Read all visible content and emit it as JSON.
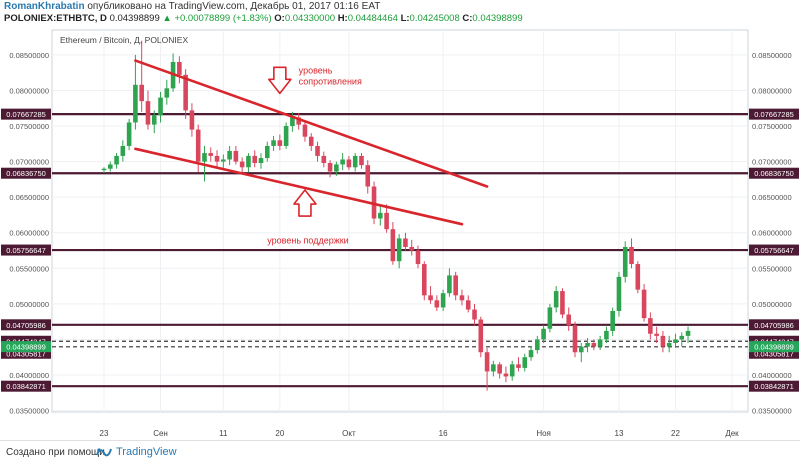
{
  "header": {
    "author": "RomanKhrabatin",
    "published": "опубликовано на TradingView.com, Декабрь 01, 2017 01:16 EAT",
    "quote": {
      "pair": "POLONIEX:ETHBTC, D",
      "last": "0.04398899",
      "change": "▲ +0.00078899 (+1.83%)",
      "open_label": "O:",
      "open": "0.04330000",
      "high_label": "H:",
      "high": "0.04484464",
      "low_label": "L:",
      "low": "0.04245008",
      "close_label": "C:",
      "close": "0.04398899"
    }
  },
  "footer": {
    "created_with": "Создано при помощи",
    "brand": "TradingView"
  },
  "colors": {
    "up": "#2ea44f",
    "down": "#d9475f",
    "level_line": "#4d1a33",
    "trend": "#d8262c",
    "annotation": "#d8262c",
    "last_price": "#26a65b"
  },
  "chart_data": {
    "type": "candlestick",
    "title": "Ethereum / Bitcoin, Д, POLONIEX",
    "ylim": [
      0.0348,
      0.0885
    ],
    "yticks": [
      "0.03500000",
      "0.04000000",
      "0.04500000",
      "0.05000000",
      "0.05500000",
      "0.06000000",
      "0.06500000",
      "0.07000000",
      "0.07500000",
      "0.08000000",
      "0.08500000"
    ],
    "xticks": [
      {
        "label": "23",
        "day": 0
      },
      {
        "label": "Сен",
        "day": 9
      },
      {
        "label": "11",
        "day": 19
      },
      {
        "label": "20",
        "day": 28
      },
      {
        "label": "Окт",
        "day": 39
      },
      {
        "label": "16",
        "day": 54
      },
      {
        "label": "Ноя",
        "day": 70
      },
      {
        "label": "13",
        "day": 82
      },
      {
        "label": "22",
        "day": 91
      },
      {
        "label": "Дек",
        "day": 100
      }
    ],
    "levels": [
      {
        "value": 0.07667285,
        "label": "0.07667285",
        "style": "solid"
      },
      {
        "value": 0.0683675,
        "label": "0.06836750",
        "style": "solid"
      },
      {
        "value": 0.05756647,
        "label": "0.05756647",
        "style": "solid"
      },
      {
        "value": 0.04705986,
        "label": "0.04705986",
        "style": "solid"
      },
      {
        "value": 0.04474347,
        "label": "0.04474347",
        "style": "dashed"
      },
      {
        "value": 0.04396688,
        "label": "0.04396688",
        "style": "dashed"
      },
      {
        "value": 0.04305817,
        "label": "0.04305817",
        "style": "none"
      },
      {
        "value": 0.03842871,
        "label": "0.03842871",
        "style": "solid"
      }
    ],
    "last_price": {
      "value": 0.04398899,
      "label": "0.04398899"
    },
    "trendlines": [
      {
        "name": "resistance",
        "from": [
          5,
          0.0842
        ],
        "to": [
          61,
          0.0665
        ]
      },
      {
        "name": "support",
        "from": [
          5,
          0.0718
        ],
        "to": [
          57,
          0.0612
        ]
      }
    ],
    "annotations": [
      {
        "text": "уровень\nсопротивления",
        "day": 31,
        "price": 0.0824
      },
      {
        "text": "уровень поддержки",
        "day": 26,
        "price": 0.0585
      }
    ],
    "arrows": [
      {
        "direction": "down",
        "day": 28,
        "price": 0.081
      },
      {
        "direction": "up",
        "day": 32,
        "price": 0.0646
      }
    ],
    "candles": [
      [
        0.0688,
        0.0692,
        0.0684,
        0.069
      ],
      [
        0.069,
        0.07,
        0.0686,
        0.0696
      ],
      [
        0.0696,
        0.0712,
        0.069,
        0.0708
      ],
      [
        0.0708,
        0.073,
        0.07,
        0.0722
      ],
      [
        0.0722,
        0.076,
        0.0716,
        0.0755
      ],
      [
        0.0755,
        0.085,
        0.0745,
        0.0808
      ],
      [
        0.0808,
        0.087,
        0.077,
        0.0785
      ],
      [
        0.0785,
        0.08,
        0.0745,
        0.0752
      ],
      [
        0.0752,
        0.0772,
        0.074,
        0.0765
      ],
      [
        0.0765,
        0.0798,
        0.0755,
        0.079
      ],
      [
        0.079,
        0.0815,
        0.078,
        0.0803
      ],
      [
        0.0803,
        0.0852,
        0.0798,
        0.084
      ],
      [
        0.084,
        0.0848,
        0.081,
        0.0822
      ],
      [
        0.0822,
        0.083,
        0.076,
        0.0772
      ],
      [
        0.0772,
        0.0782,
        0.0735,
        0.0745
      ],
      [
        0.0745,
        0.0752,
        0.0685,
        0.07
      ],
      [
        0.07,
        0.0722,
        0.0672,
        0.0712
      ],
      [
        0.0712,
        0.072,
        0.07,
        0.0708
      ],
      [
        0.0708,
        0.0716,
        0.0692,
        0.07
      ],
      [
        0.07,
        0.071,
        0.069,
        0.0703
      ],
      [
        0.0703,
        0.0722,
        0.0695,
        0.0715
      ],
      [
        0.0715,
        0.0722,
        0.0696,
        0.07
      ],
      [
        0.07,
        0.0706,
        0.0682,
        0.0692
      ],
      [
        0.0692,
        0.0712,
        0.0685,
        0.0708
      ],
      [
        0.0708,
        0.0716,
        0.0692,
        0.0698
      ],
      [
        0.0698,
        0.0712,
        0.069,
        0.0705
      ],
      [
        0.0705,
        0.0728,
        0.07,
        0.0722
      ],
      [
        0.0722,
        0.0736,
        0.0715,
        0.073
      ],
      [
        0.073,
        0.0738,
        0.0716,
        0.0722
      ],
      [
        0.0722,
        0.0755,
        0.0718,
        0.075
      ],
      [
        0.075,
        0.077,
        0.0742,
        0.0762
      ],
      [
        0.0762,
        0.0768,
        0.0745,
        0.0752
      ],
      [
        0.0752,
        0.0756,
        0.0728,
        0.0735
      ],
      [
        0.0735,
        0.074,
        0.0715,
        0.0722
      ],
      [
        0.0722,
        0.0728,
        0.07,
        0.0708
      ],
      [
        0.0708,
        0.0714,
        0.0692,
        0.0698
      ],
      [
        0.0698,
        0.0702,
        0.0678,
        0.0686
      ],
      [
        0.0686,
        0.07,
        0.068,
        0.0696
      ],
      [
        0.0696,
        0.0712,
        0.0688,
        0.0703
      ],
      [
        0.0703,
        0.0708,
        0.0688,
        0.0692
      ],
      [
        0.0692,
        0.0712,
        0.0686,
        0.0708
      ],
      [
        0.0708,
        0.0712,
        0.069,
        0.0695
      ],
      [
        0.0695,
        0.0702,
        0.0655,
        0.0665
      ],
      [
        0.0665,
        0.0672,
        0.0612,
        0.062
      ],
      [
        0.062,
        0.0638,
        0.061,
        0.0628
      ],
      [
        0.0628,
        0.064,
        0.06,
        0.0605
      ],
      [
        0.0605,
        0.0615,
        0.0555,
        0.056
      ],
      [
        0.056,
        0.0598,
        0.055,
        0.0592
      ],
      [
        0.0592,
        0.06,
        0.0575,
        0.058
      ],
      [
        0.058,
        0.059,
        0.0568,
        0.0575
      ],
      [
        0.0575,
        0.0582,
        0.055,
        0.0556
      ],
      [
        0.0556,
        0.056,
        0.0505,
        0.0512
      ],
      [
        0.0512,
        0.0525,
        0.05,
        0.0505
      ],
      [
        0.0505,
        0.0512,
        0.049,
        0.0495
      ],
      [
        0.0495,
        0.052,
        0.049,
        0.0515
      ],
      [
        0.0515,
        0.055,
        0.051,
        0.054
      ],
      [
        0.054,
        0.0545,
        0.0505,
        0.0512
      ],
      [
        0.0512,
        0.052,
        0.0498,
        0.0505
      ],
      [
        0.0505,
        0.0512,
        0.0488,
        0.0492
      ],
      [
        0.0492,
        0.05,
        0.047,
        0.0478
      ],
      [
        0.0478,
        0.0482,
        0.0425,
        0.0432
      ],
      [
        0.0432,
        0.0438,
        0.0378,
        0.0405
      ],
      [
        0.0405,
        0.042,
        0.0398,
        0.0415
      ],
      [
        0.0415,
        0.0418,
        0.0395,
        0.0402
      ],
      [
        0.0402,
        0.0412,
        0.039,
        0.0398
      ],
      [
        0.0398,
        0.042,
        0.0392,
        0.0415
      ],
      [
        0.0415,
        0.0425,
        0.0405,
        0.041
      ],
      [
        0.041,
        0.043,
        0.0405,
        0.0425
      ],
      [
        0.0425,
        0.044,
        0.042,
        0.0435
      ],
      [
        0.0435,
        0.0455,
        0.043,
        0.045
      ],
      [
        0.045,
        0.047,
        0.0445,
        0.0465
      ],
      [
        0.0465,
        0.05,
        0.046,
        0.0495
      ],
      [
        0.0495,
        0.0525,
        0.0488,
        0.0518
      ],
      [
        0.0518,
        0.0522,
        0.048,
        0.0485
      ],
      [
        0.0485,
        0.0495,
        0.0462,
        0.047
      ],
      [
        0.047,
        0.0475,
        0.0425,
        0.0432
      ],
      [
        0.0432,
        0.0445,
        0.0418,
        0.044
      ],
      [
        0.044,
        0.0452,
        0.0432,
        0.0445
      ],
      [
        0.0445,
        0.045,
        0.0435,
        0.044
      ],
      [
        0.044,
        0.0455,
        0.0435,
        0.045
      ],
      [
        0.045,
        0.0468,
        0.0445,
        0.0462
      ],
      [
        0.0462,
        0.0495,
        0.0455,
        0.049
      ],
      [
        0.049,
        0.0545,
        0.0482,
        0.0538
      ],
      [
        0.0538,
        0.0588,
        0.053,
        0.058
      ],
      [
        0.058,
        0.0592,
        0.055,
        0.0556
      ],
      [
        0.0556,
        0.056,
        0.0515,
        0.052
      ],
      [
        0.052,
        0.0528,
        0.0475,
        0.048
      ],
      [
        0.048,
        0.0488,
        0.045,
        0.0458
      ],
      [
        0.0458,
        0.0468,
        0.0445,
        0.0455
      ],
      [
        0.0455,
        0.0462,
        0.0432,
        0.044
      ],
      [
        0.044,
        0.0455,
        0.0432,
        0.0445
      ],
      [
        0.0445,
        0.0458,
        0.0438,
        0.045
      ],
      [
        0.045,
        0.046,
        0.044,
        0.0455
      ],
      [
        0.0455,
        0.0468,
        0.0445,
        0.0462
      ]
    ]
  }
}
